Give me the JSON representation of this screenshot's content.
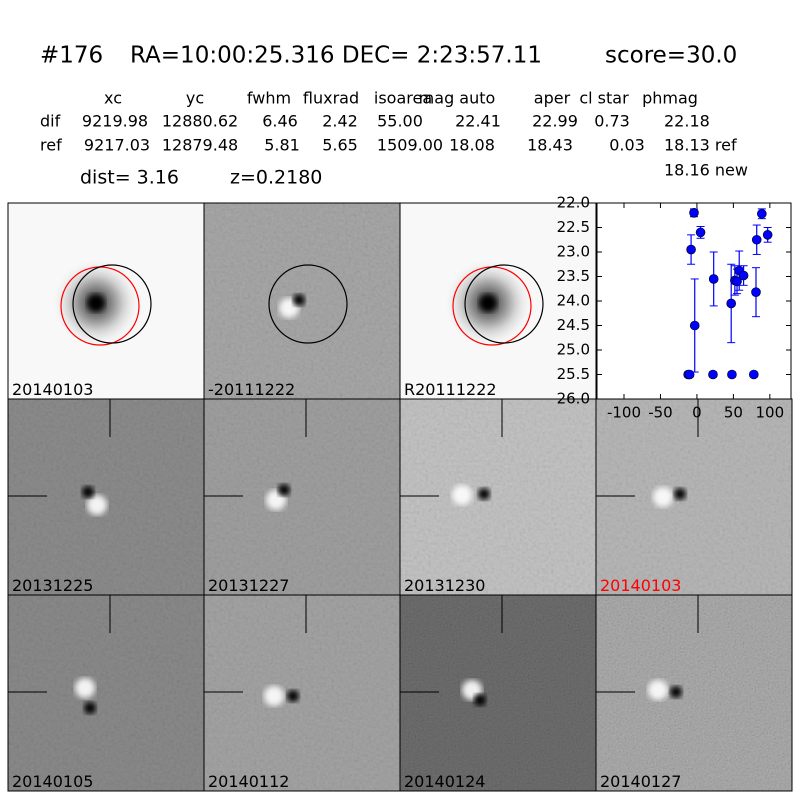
{
  "header": {
    "id": "#176",
    "coords": "RA=10:00:25.316 DEC= 2:23:57.11",
    "score": "score=30.0"
  },
  "table": {
    "columns": [
      "xc",
      "yc",
      "fwhm",
      "fluxrad",
      "isoarea",
      "mag auto",
      "aper",
      "cl star",
      "phmag"
    ],
    "rows": [
      [
        "dif",
        "9219.98",
        "12880.62",
        "6.46",
        "2.42",
        "55.00",
        "22.41",
        "22.99",
        "0.73",
        "22.18"
      ],
      [
        "ref",
        "9217.03",
        "12879.48",
        "5.81",
        "5.65",
        "1509.00",
        "18.08",
        "18.43",
        "0.03",
        "18.13 ref"
      ]
    ],
    "extra": "18.16 new",
    "dist": "dist=  3.16",
    "z": "z=0.2180"
  },
  "panels": {
    "labels": [
      "20140103",
      "-20111222",
      "R20111222",
      "20131225",
      "20131227",
      "20131230",
      "20140103",
      "20140105",
      "20140112",
      "20140124",
      "20140127"
    ]
  },
  "chart_data": {
    "type": "scatter",
    "series": [
      {
        "color": "#0000ff",
        "x": [
          -12,
          -10,
          -8,
          -4,
          -3,
          5,
          22,
          23,
          47,
          48,
          52,
          55,
          58,
          64,
          78,
          81,
          82,
          89,
          97
        ],
        "values": [
          25.5,
          25.5,
          22.95,
          22.2,
          24.5,
          22.6,
          25.5,
          23.55,
          24.05,
          25.5,
          23.58,
          23.6,
          23.38,
          23.48,
          25.5,
          23.82,
          22.75,
          22.22,
          22.65
        ],
        "errors": [
          0.05,
          0.05,
          0.3,
          0.08,
          0.95,
          0.12,
          0.05,
          0.55,
          0.8,
          0.05,
          0.3,
          0.25,
          0.4,
          0.2,
          0.05,
          0.5,
          0.3,
          0.1,
          0.15
        ]
      }
    ],
    "xlim": [
      -137,
      129
    ],
    "ylim": [
      26.0,
      22.0
    ],
    "xticks": [
      -100,
      -50,
      0,
      50,
      100
    ],
    "yticks": [
      {
        "value": 22.0,
        "label": "22.0"
      },
      {
        "value": 22.5,
        "label": "22.5"
      },
      {
        "value": 23.0,
        "label": "23.0"
      },
      {
        "value": 23.5,
        "label": "23.5"
      },
      {
        "value": 24.0,
        "label": "24.0"
      },
      {
        "value": 24.5,
        "label": "24.5"
      },
      {
        "value": 25.0,
        "label": "25.0"
      },
      {
        "value": 25.5,
        "label": "25.5"
      },
      {
        "value": 26.0,
        "label": "26.0"
      }
    ]
  }
}
